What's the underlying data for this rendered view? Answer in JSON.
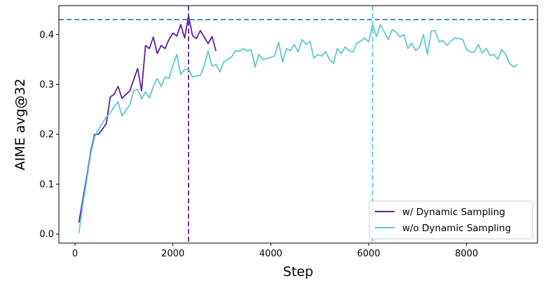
{
  "chart_data": {
    "type": "line",
    "title": "",
    "xlabel": "Step",
    "ylabel": "AIME avg@32",
    "xlim": [
      -330,
      9450
    ],
    "ylim": [
      -0.018,
      0.458
    ],
    "xticks": [
      0,
      2000,
      4000,
      6000,
      8000
    ],
    "yticks": [
      0.0,
      0.1,
      0.2,
      0.3,
      0.4
    ],
    "xtick_labels": [
      "0",
      "2000",
      "4000",
      "6000",
      "8000"
    ],
    "ytick_labels": [
      "0.0",
      "0.1",
      "0.2",
      "0.3",
      "0.4"
    ],
    "grid": false,
    "legend_position": "lower-right",
    "series": [
      {
        "name": "w/ Dynamic Sampling",
        "color": "#5b1ea6",
        "x": [
          80,
          160,
          240,
          320,
          400,
          480,
          560,
          640,
          720,
          800,
          880,
          960,
          1040,
          1120,
          1200,
          1280,
          1360,
          1440,
          1520,
          1600,
          1680,
          1760,
          1840,
          1920,
          2000,
          2080,
          2160,
          2240,
          2320,
          2400,
          2480,
          2560,
          2640,
          2720,
          2800,
          2880
        ],
        "values": [
          0.023,
          0.07,
          0.115,
          0.165,
          0.2,
          0.2,
          0.21,
          0.222,
          0.275,
          0.28,
          0.296,
          0.272,
          0.28,
          0.287,
          0.31,
          0.332,
          0.287,
          0.378,
          0.372,
          0.395,
          0.362,
          0.378,
          0.372,
          0.39,
          0.403,
          0.397,
          0.42,
          0.393,
          0.438,
          0.398,
          0.392,
          0.408,
          0.395,
          0.382,
          0.396,
          0.367
        ]
      },
      {
        "name": "w/o Dynamic Sampling",
        "color": "#5fc8d0",
        "x": [
          80,
          160,
          240,
          320,
          400,
          480,
          560,
          640,
          720,
          800,
          880,
          960,
          1040,
          1120,
          1200,
          1280,
          1360,
          1440,
          1520,
          1600,
          1680,
          1760,
          1840,
          1920,
          2000,
          2080,
          2160,
          2240,
          2320,
          2400,
          2480,
          2560,
          2640,
          2720,
          2800,
          2880,
          2960,
          3040,
          3120,
          3200,
          3280,
          3360,
          3440,
          3520,
          3600,
          3680,
          3760,
          3840,
          3920,
          4000,
          4080,
          4160,
          4240,
          4320,
          4400,
          4480,
          4560,
          4640,
          4720,
          4800,
          4880,
          4960,
          5040,
          5120,
          5200,
          5280,
          5360,
          5440,
          5520,
          5600,
          5680,
          5760,
          5840,
          5920,
          6000,
          6080,
          6160,
          6240,
          6320,
          6400,
          6480,
          6560,
          6640,
          6720,
          6800,
          6880,
          6960,
          7040,
          7120,
          7200,
          7280,
          7360,
          7440,
          7520,
          7600,
          7680,
          7760,
          7840,
          7920,
          8000,
          8080,
          8160,
          8240,
          8320,
          8400,
          8480,
          8560,
          8640,
          8720,
          8800,
          8880,
          8960,
          9040
        ],
        "values": [
          0.002,
          0.06,
          0.108,
          0.16,
          0.195,
          0.21,
          0.222,
          0.235,
          0.243,
          0.255,
          0.265,
          0.237,
          0.248,
          0.26,
          0.287,
          0.29,
          0.271,
          0.285,
          0.273,
          0.296,
          0.312,
          0.296,
          0.315,
          0.312,
          0.338,
          0.36,
          0.32,
          0.33,
          0.33,
          0.315,
          0.317,
          0.318,
          0.337,
          0.367,
          0.337,
          0.34,
          0.325,
          0.345,
          0.35,
          0.355,
          0.368,
          0.366,
          0.372,
          0.367,
          0.37,
          0.335,
          0.36,
          0.35,
          0.352,
          0.354,
          0.357,
          0.385,
          0.345,
          0.372,
          0.368,
          0.38,
          0.365,
          0.39,
          0.38,
          0.387,
          0.353,
          0.36,
          0.357,
          0.366,
          0.35,
          0.342,
          0.372,
          0.362,
          0.375,
          0.368,
          0.365,
          0.383,
          0.387,
          0.393,
          0.385,
          0.42,
          0.396,
          0.42,
          0.405,
          0.39,
          0.41,
          0.405,
          0.395,
          0.4,
          0.372,
          0.383,
          0.368,
          0.375,
          0.4,
          0.36,
          0.407,
          0.408,
          0.385,
          0.388,
          0.378,
          0.387,
          0.393,
          0.392,
          0.39,
          0.37,
          0.365,
          0.365,
          0.38,
          0.363,
          0.372,
          0.358,
          0.36,
          0.35,
          0.37,
          0.36,
          0.342,
          0.335,
          0.34
        ]
      }
    ],
    "reference_lines": [
      {
        "orientation": "horizontal",
        "value": 0.43,
        "color": "#3b82d6"
      },
      {
        "orientation": "vertical",
        "value": 2320,
        "color": "#5b1ea6"
      },
      {
        "orientation": "vertical",
        "value": 6080,
        "color": "#5fc8d0"
      }
    ]
  }
}
